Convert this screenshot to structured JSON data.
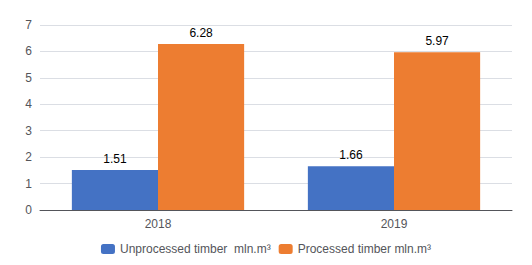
{
  "chart_data": {
    "type": "bar",
    "categories": [
      "2018",
      "2019"
    ],
    "series": [
      {
        "name": "Unprocessed timber  mln.m³",
        "color": "#4472c4",
        "values": [
          1.51,
          1.66
        ]
      },
      {
        "name": "Processed timber mln.m³",
        "color": "#ed7d31",
        "values": [
          6.28,
          5.97
        ]
      }
    ],
    "ylim": [
      0,
      7
    ],
    "yticks": [
      0,
      1,
      2,
      3,
      4,
      5,
      6,
      7
    ],
    "grid": true,
    "data_labels": true,
    "legend": "bottom"
  }
}
